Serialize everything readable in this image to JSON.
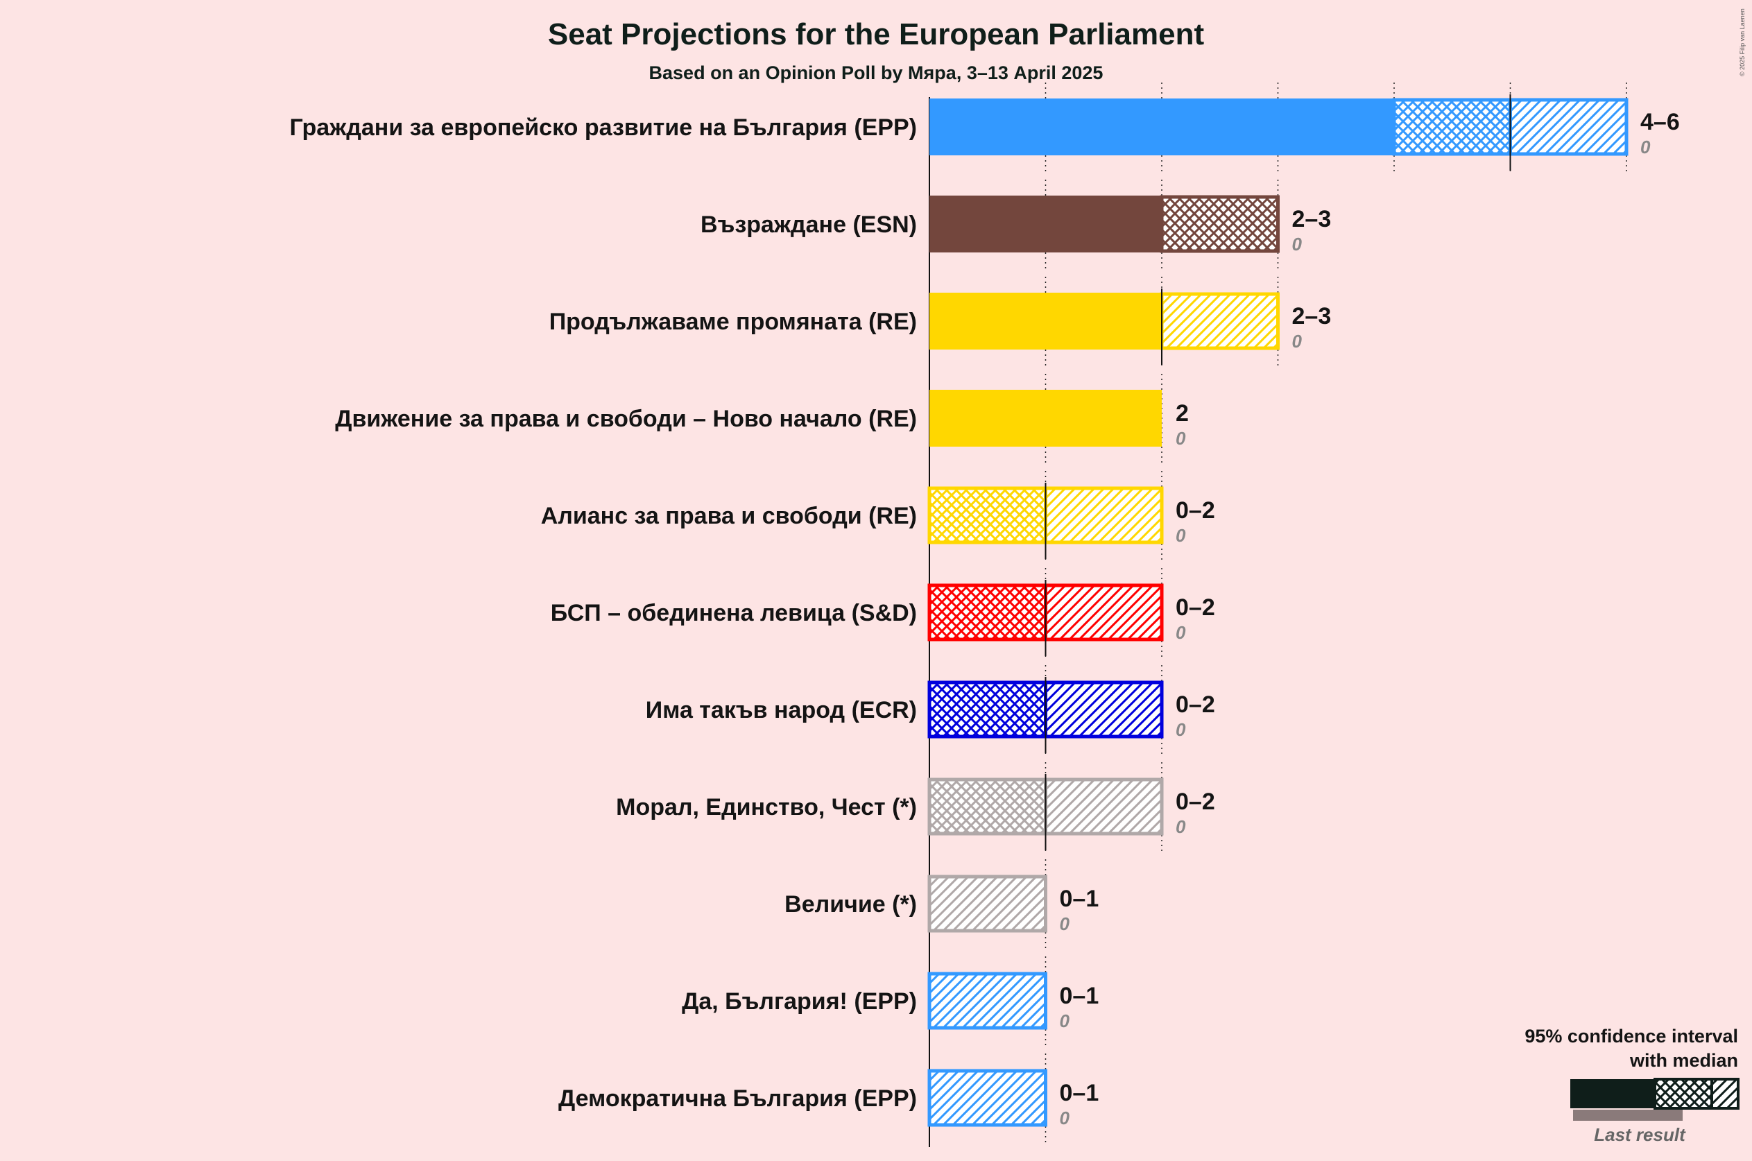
{
  "title": "Seat Projections for the European Parliament",
  "subtitle": "Based on an Opinion Poll by Мяра, 3–13 April 2025",
  "copyright": "© 2025 Filip van Laenen",
  "legend": {
    "title_line1": "95% confidence interval",
    "title_line2": "with median",
    "last_result": "Last result"
  },
  "chart_data": {
    "type": "bar",
    "orientation": "horizontal",
    "unit": "seats",
    "xlim": [
      0,
      6
    ],
    "gridlines": [
      1,
      2,
      3,
      4,
      5,
      6
    ],
    "parties": [
      {
        "name": "Граждани за европейско развитие на България (EPP)",
        "color": "#3399ff",
        "low": 4,
        "median": 5,
        "high": 6,
        "last": 0,
        "range_label": "4–6",
        "last_label": "0"
      },
      {
        "name": "Възраждане (ESN)",
        "color": "#73463d",
        "low": 2,
        "median": 3,
        "high": 3,
        "last": 0,
        "range_label": "2–3",
        "last_label": "0"
      },
      {
        "name": "Продължаваме промяната (RE)",
        "color": "#ffd700",
        "low": 2,
        "median": 2,
        "high": 3,
        "last": 0,
        "range_label": "2–3",
        "last_label": "0"
      },
      {
        "name": "Движение за права и свободи – Ново начало (RE)",
        "color": "#ffd700",
        "low": 2,
        "median": 2,
        "high": 2,
        "last": 0,
        "range_label": "2",
        "last_label": "0"
      },
      {
        "name": "Алианс за права и свободи (RE)",
        "color": "#ffd700",
        "low": 0,
        "median": 1,
        "high": 2,
        "last": 0,
        "range_label": "0–2",
        "last_label": "0"
      },
      {
        "name": "БСП – обединена левица (S&D)",
        "color": "#ff0000",
        "low": 0,
        "median": 1,
        "high": 2,
        "last": 0,
        "range_label": "0–2",
        "last_label": "0"
      },
      {
        "name": "Има такъв народ (ECR)",
        "color": "#0000dd",
        "low": 0,
        "median": 1,
        "high": 2,
        "last": 0,
        "range_label": "0–2",
        "last_label": "0"
      },
      {
        "name": "Морал, Единство, Чест (*)",
        "color": "#b0a8a8",
        "low": 0,
        "median": 1,
        "high": 2,
        "last": 0,
        "range_label": "0–2",
        "last_label": "0"
      },
      {
        "name": "Величие (*)",
        "color": "#b0a8a8",
        "low": 0,
        "median": 0,
        "high": 1,
        "last": 0,
        "range_label": "0–1",
        "last_label": "0"
      },
      {
        "name": "Да, България! (EPP)",
        "color": "#3399ff",
        "low": 0,
        "median": 0,
        "high": 1,
        "last": 0,
        "range_label": "0–1",
        "last_label": "0"
      },
      {
        "name": "Демократична България (EPP)",
        "color": "#3399ff",
        "low": 0,
        "median": 0,
        "high": 1,
        "last": 0,
        "range_label": "0–1",
        "last_label": "0"
      }
    ]
  }
}
